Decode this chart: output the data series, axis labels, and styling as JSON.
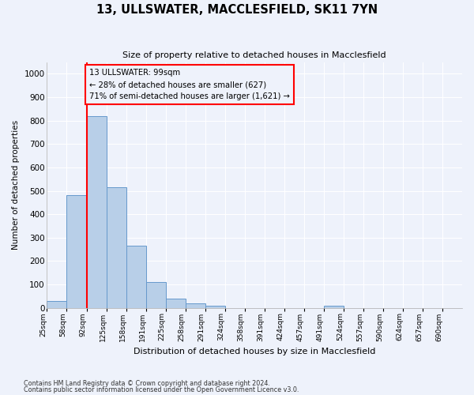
{
  "title": "13, ULLSWATER, MACCLESFIELD, SK11 7YN",
  "subtitle": "Size of property relative to detached houses in Macclesfield",
  "xlabel": "Distribution of detached houses by size in Macclesfield",
  "ylabel": "Number of detached properties",
  "footnote1": "Contains HM Land Registry data © Crown copyright and database right 2024.",
  "footnote2": "Contains public sector information licensed under the Open Government Licence v3.0.",
  "categories": [
    "25sqm",
    "58sqm",
    "92sqm",
    "125sqm",
    "158sqm",
    "191sqm",
    "225sqm",
    "258sqm",
    "291sqm",
    "324sqm",
    "358sqm",
    "391sqm",
    "424sqm",
    "457sqm",
    "491sqm",
    "524sqm",
    "557sqm",
    "590sqm",
    "624sqm",
    "657sqm",
    "690sqm"
  ],
  "bar_heights": [
    30,
    480,
    820,
    515,
    265,
    110,
    40,
    20,
    10,
    0,
    0,
    0,
    0,
    0,
    10,
    0,
    0,
    0,
    0,
    0,
    0
  ],
  "bar_color": "#b8cfe8",
  "bar_edge_color": "#6699cc",
  "vline_index": 2,
  "vline_color": "red",
  "annotation_text": "13 ULLSWATER: 99sqm\n← 28% of detached houses are smaller (627)\n71% of semi-detached houses are larger (1,621) →",
  "annotation_box_edgecolor": "red",
  "ylim": [
    0,
    1050
  ],
  "yticks": [
    0,
    100,
    200,
    300,
    400,
    500,
    600,
    700,
    800,
    900,
    1000
  ],
  "background_color": "#eef2fb",
  "grid_color": "white"
}
